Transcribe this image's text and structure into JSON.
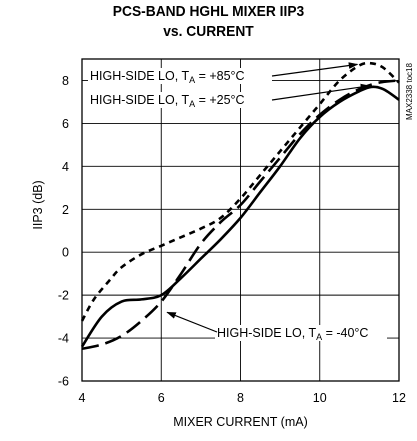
{
  "title_line1": "PCS-BAND HGHL MIXER IIP3",
  "title_line2": "vs. CURRENT",
  "part_code": "MAX2338 toc18",
  "chart_data": {
    "type": "line",
    "title": "PCS-BAND HGHL MIXER IIP3 vs. CURRENT",
    "xlabel": "MIXER CURRENT (mA)",
    "ylabel": "IIP3 (dB)",
    "xlim": [
      4,
      12
    ],
    "ylim": [
      -6,
      9
    ],
    "xticks": [
      4,
      6,
      8,
      10,
      12
    ],
    "yticks": [
      -6,
      -4,
      -2,
      0,
      2,
      4,
      6,
      8
    ],
    "grid": true,
    "series": [
      {
        "name": "HIGH-SIDE LO, TA = +85°C",
        "label_main": "HIGH-SIDE LO, T",
        "label_sub": "A",
        "label_tail": " = +85°C",
        "style": "short-dash",
        "x": [
          4.0,
          4.3,
          4.7,
          5.0,
          5.5,
          6.0,
          6.5,
          7.0,
          7.5,
          8.0,
          8.5,
          9.0,
          9.5,
          10.0,
          10.5,
          11.0,
          11.3,
          11.6,
          12.0
        ],
        "y": [
          -3.2,
          -2.2,
          -1.3,
          -0.7,
          -0.1,
          0.3,
          0.7,
          1.1,
          1.6,
          2.5,
          3.6,
          4.7,
          5.8,
          6.9,
          8.0,
          8.7,
          8.8,
          8.6,
          7.9
        ]
      },
      {
        "name": "HIGH-SIDE LO, TA = +25°C",
        "label_main": "HIGH-SIDE LO, T",
        "label_sub": "A",
        "label_tail": " = +25°C",
        "style": "solid",
        "x": [
          4.0,
          4.5,
          5.0,
          5.5,
          6.0,
          6.5,
          7.0,
          7.5,
          8.0,
          8.5,
          9.0,
          9.5,
          10.0,
          10.5,
          11.0,
          11.3,
          11.6,
          12.0
        ],
        "y": [
          -4.4,
          -3.0,
          -2.3,
          -2.2,
          -2.0,
          -1.2,
          -0.3,
          0.6,
          1.6,
          2.8,
          4.0,
          5.3,
          6.3,
          7.0,
          7.5,
          7.7,
          7.6,
          7.1
        ]
      },
      {
        "name": "HIGH-SIDE LO, TA = -40°C",
        "label_main": "HIGH-SIDE LO, T",
        "label_sub": "A",
        "label_tail": " = -40°C",
        "style": "long-dash",
        "x": [
          4.0,
          4.5,
          5.0,
          5.5,
          6.0,
          6.5,
          7.0,
          7.5,
          8.0,
          8.5,
          9.0,
          9.5,
          10.0,
          10.5,
          11.0,
          11.5,
          12.0
        ],
        "y": [
          -4.5,
          -4.3,
          -3.9,
          -3.2,
          -2.3,
          -1.0,
          0.4,
          1.4,
          2.2,
          3.3,
          4.4,
          5.5,
          6.4,
          7.1,
          7.6,
          7.9,
          8.0
        ]
      }
    ]
  }
}
